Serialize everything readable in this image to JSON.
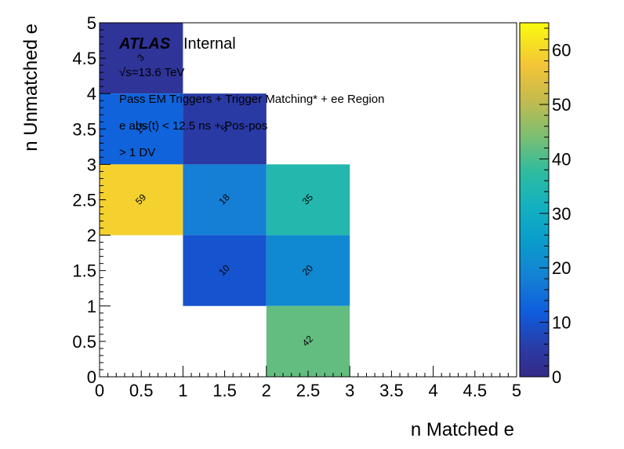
{
  "chart_data": {
    "type": "heatmap",
    "xlabel": "n Matched e",
    "ylabel": "n Unmatched e",
    "xlim": [
      0,
      5
    ],
    "ylim": [
      0,
      5
    ],
    "x_ticks": [
      "0",
      "0.5",
      "1",
      "1.5",
      "2",
      "2.5",
      "3",
      "3.5",
      "4",
      "4.5",
      "5"
    ],
    "y_ticks": [
      "0",
      "0.5",
      "1",
      "1.5",
      "2",
      "2.5",
      "3",
      "3.5",
      "4",
      "4.5",
      "5"
    ],
    "z_range": [
      0,
      65
    ],
    "z_ticks": [
      "0",
      "10",
      "20",
      "30",
      "40",
      "50",
      "60"
    ],
    "cells": [
      {
        "x": [
          0,
          1
        ],
        "y": [
          4,
          5
        ],
        "value": 3,
        "label": "3"
      },
      {
        "x": [
          0,
          1
        ],
        "y": [
          3,
          4
        ],
        "value": 13,
        "label": "13"
      },
      {
        "x": [
          1,
          2
        ],
        "y": [
          3,
          4
        ],
        "value": 5,
        "label": "5"
      },
      {
        "x": [
          0,
          1
        ],
        "y": [
          2,
          3
        ],
        "value": 59,
        "label": "59"
      },
      {
        "x": [
          1,
          2
        ],
        "y": [
          2,
          3
        ],
        "value": 18,
        "label": "18"
      },
      {
        "x": [
          2,
          3
        ],
        "y": [
          2,
          3
        ],
        "value": 35,
        "label": "35"
      },
      {
        "x": [
          1,
          2
        ],
        "y": [
          1,
          2
        ],
        "value": 10,
        "label": "10"
      },
      {
        "x": [
          2,
          3
        ],
        "y": [
          1,
          2
        ],
        "value": 20,
        "label": "20"
      },
      {
        "x": [
          2,
          3
        ],
        "y": [
          0,
          1
        ],
        "value": 42,
        "label": "42"
      }
    ],
    "annotations": {
      "atlas": "ATLAS",
      "internal": "Internal",
      "energy": "√s=13.6 TeV",
      "line1": "Pass EM Triggers + Trigger Matching* + ee Region",
      "line2": "e abs(t) < 12.5 ns + Pos-pos",
      "line3": "> 1 DV"
    }
  }
}
